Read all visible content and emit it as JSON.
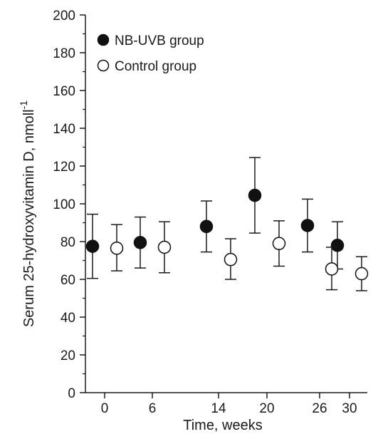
{
  "chart_data": {
    "type": "scatter",
    "title": "",
    "xlabel": "Time, weeks",
    "ylabel": "Serum 25-hydroxyvitamin D,  nmoll",
    "ylabel_superscript": "-1",
    "ylim": [
      0,
      200
    ],
    "yticks": [
      0,
      20,
      40,
      60,
      80,
      100,
      120,
      140,
      160,
      180,
      200
    ],
    "xticks": [
      0,
      6,
      14,
      20,
      26,
      30
    ],
    "grid": false,
    "legend_position": "top-left",
    "series": [
      {
        "name": "NB-UVB group",
        "marker": "filled-circle",
        "color": "#111111",
        "x": [
          0,
          6,
          14,
          20,
          26,
          30
        ],
        "y": [
          77.5,
          79.5,
          88,
          104.5,
          88.5,
          78
        ],
        "err_low": [
          60.5,
          66,
          74.5,
          84.5,
          74.5,
          65.5
        ],
        "err_high": [
          94.5,
          93,
          101.5,
          124.5,
          102.5,
          90.5
        ]
      },
      {
        "name": "Control group",
        "marker": "open-circle",
        "color": "#111111",
        "x": [
          0,
          6,
          14,
          20,
          26,
          30
        ],
        "y": [
          76.5,
          77,
          70.5,
          79,
          65.5,
          63
        ],
        "err_low": [
          64.5,
          63.5,
          60,
          67,
          54.5,
          54
        ],
        "err_high": [
          89,
          90.5,
          81.5,
          91,
          77,
          72
        ]
      }
    ]
  }
}
